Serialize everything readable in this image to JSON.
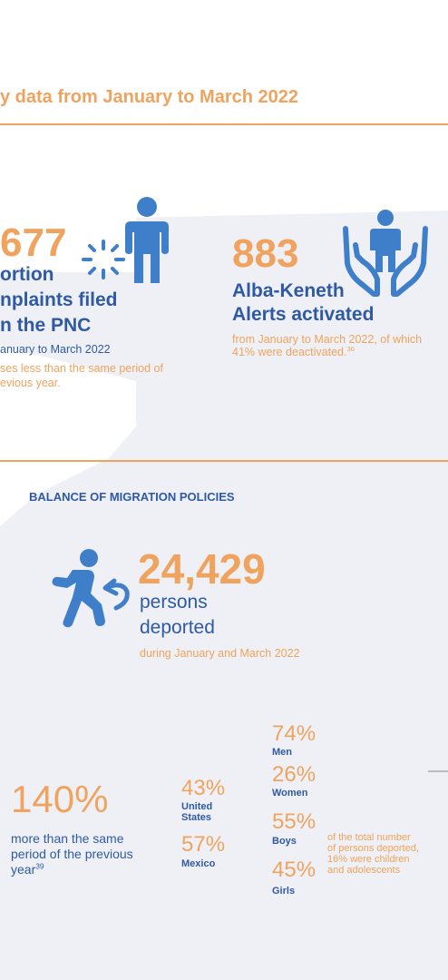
{
  "header": {
    "title": "y data from January to March 2022"
  },
  "stat_extortion": {
    "number": "677",
    "label_line1": "ortion",
    "label_line2": "nplaints filed",
    "label_line3": "n the PNC",
    "period": "anuary to March 2022",
    "note_line1": "ses less than the same period of",
    "note_line2": "evious year."
  },
  "stat_alerts": {
    "number": "883",
    "label_line1": "Alba-Keneth",
    "label_line2": "Alerts activated",
    "note_line1": "from January to March 2022, of which",
    "note_line2": "41% were deactivated.",
    "note_ref": "36"
  },
  "section_migration": {
    "title": "BALANCE OF MIGRATION POLICIES"
  },
  "stat_deported": {
    "number": "24,429",
    "label_line1": "persons",
    "label_line2": "deported",
    "period": "during January and March 2022"
  },
  "stat_increase": {
    "number": "140%",
    "label_line1": "more than the same",
    "label_line2": "period of the previous",
    "label_line3": "year",
    "ref": "39"
  },
  "origin": [
    {
      "pct": "43%",
      "label_line1": "United",
      "label_line2": "States"
    },
    {
      "pct": "57%",
      "label_line1": "Mexico",
      "label_line2": ""
    }
  ],
  "demographics": [
    {
      "pct": "74%",
      "label": "Men"
    },
    {
      "pct": "26%",
      "label": "Women"
    },
    {
      "pct": "55%",
      "label": "Boys"
    },
    {
      "pct": "45%",
      "label": "Girls"
    }
  ],
  "minors_note": {
    "line1": "of the total number",
    "line2": "of persons deported,",
    "line3": "16% were children",
    "line4": "and adolescents"
  },
  "colors": {
    "accent": "#f0a35e",
    "brand_blue": "#2f5aa3",
    "icon_blue": "#3f7fc9",
    "map_gray": "#eef0f5"
  }
}
